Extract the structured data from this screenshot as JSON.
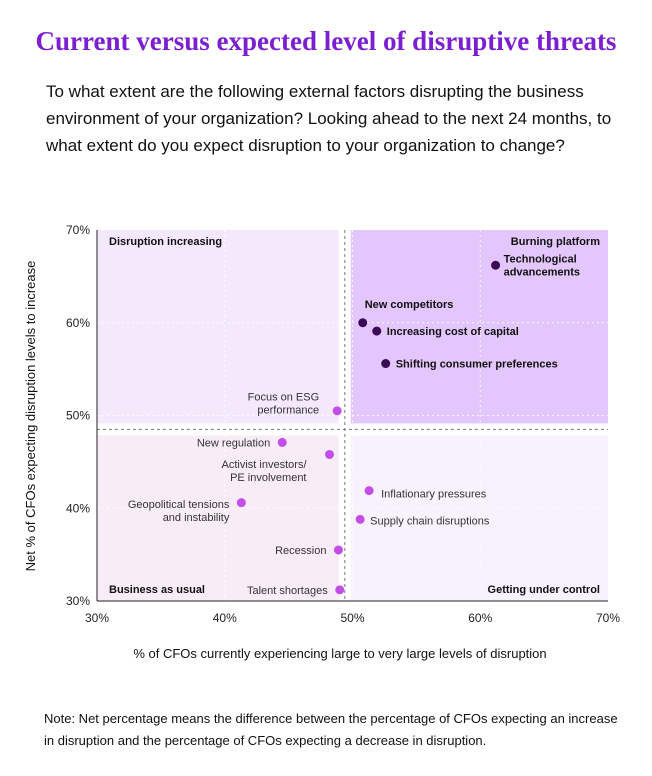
{
  "title": "Current versus expected level of disruptive threats",
  "subtitle": "To what extent are the following external factors disrupting the business environment of your organization? Looking ahead to the next 24 months, to what extent do you expect disruption to your organization to change?",
  "note": "Note: Net percentage means the difference between the percentage of CFOs expecting an increase in disruption and the percentage of CFOs expecting a decrease in disruption.",
  "colors": {
    "accent": "#7b1fd1",
    "dark_point": "#3b0a57",
    "light_point": "#c44de8",
    "upper_right_fill": "#e3c6fb",
    "upper_left_fill": "#f4e8fd",
    "lower_left_fill": "#f8edf7",
    "lower_right_fill": "#f8f2fc"
  },
  "chart_data": {
    "type": "scatter",
    "xlabel": "% of CFOs currently experiencing large to very large levels of disruption",
    "ylabel": "Net % of CFOs expecting disruption levels to increase",
    "xlim": [
      30,
      70
    ],
    "ylim": [
      30,
      70
    ],
    "x_ticks": [
      "30%",
      "40%",
      "50%",
      "60%",
      "70%"
    ],
    "y_ticks": [
      "30%",
      "40%",
      "50%",
      "60%",
      "70%"
    ],
    "divider_x": 49.4,
    "divider_y": 48.5,
    "quadrants": [
      {
        "label": "Disruption increasing",
        "position": "top-left"
      },
      {
        "label": "Burning platform",
        "position": "top-right"
      },
      {
        "label": "Business as usual",
        "position": "bottom-left"
      },
      {
        "label": "Getting under control",
        "position": "bottom-right"
      }
    ],
    "points": [
      {
        "lines": [
          "Technological",
          "advancements"
        ],
        "x": 61.2,
        "y": 66.2,
        "group": "dark"
      },
      {
        "lines": [
          "New competitors"
        ],
        "x": 50.8,
        "y": 60.0,
        "group": "dark"
      },
      {
        "lines": [
          "Increasing cost of capital"
        ],
        "x": 51.9,
        "y": 59.1,
        "group": "dark"
      },
      {
        "lines": [
          "Shifting consumer preferences"
        ],
        "x": 52.6,
        "y": 55.6,
        "group": "dark"
      },
      {
        "lines": [
          "Focus on ESG",
          "performance"
        ],
        "x": 48.8,
        "y": 50.5,
        "group": "light"
      },
      {
        "lines": [
          "New regulation"
        ],
        "x": 44.5,
        "y": 47.1,
        "group": "light"
      },
      {
        "lines": [
          "Activist investors/",
          "PE involvement"
        ],
        "x": 48.2,
        "y": 45.8,
        "group": "light"
      },
      {
        "lines": [
          "Geopolitical tensions",
          "and instability"
        ],
        "x": 41.3,
        "y": 40.6,
        "group": "light"
      },
      {
        "lines": [
          "Inflationary pressures"
        ],
        "x": 51.3,
        "y": 41.9,
        "group": "light"
      },
      {
        "lines": [
          "Supply chain disruptions"
        ],
        "x": 50.6,
        "y": 38.8,
        "group": "light"
      },
      {
        "lines": [
          "Recession"
        ],
        "x": 48.9,
        "y": 35.5,
        "group": "light"
      },
      {
        "lines": [
          "Talent shortages"
        ],
        "x": 49.0,
        "y": 31.2,
        "group": "light"
      }
    ]
  }
}
